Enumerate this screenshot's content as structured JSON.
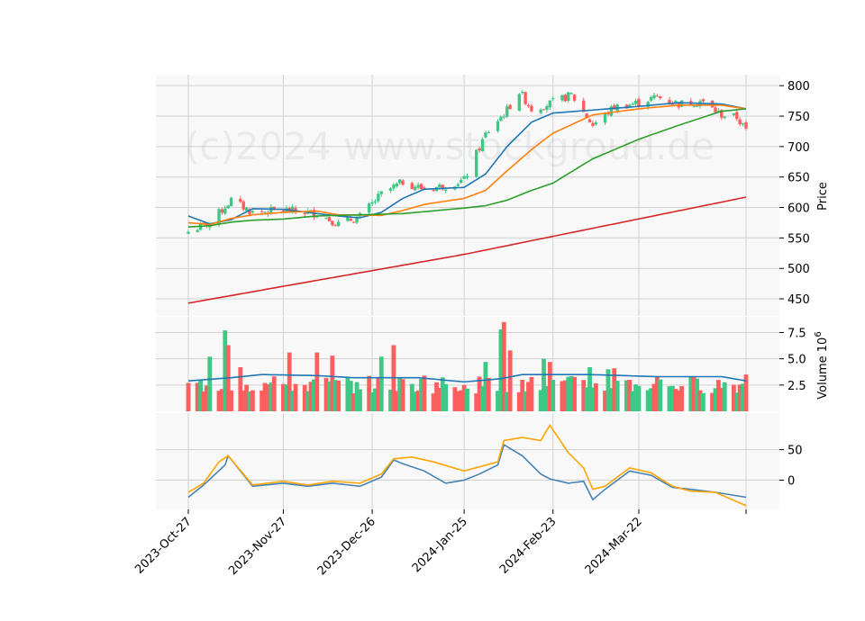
{
  "watermark": "(c)2024 www.stockgroud.de",
  "chart_data": [
    {
      "type": "candlestick",
      "panel": "price",
      "ylabel": "Price",
      "ylim": [
        422,
        818
      ],
      "yticks": [
        450,
        500,
        550,
        600,
        650,
        700,
        750,
        800
      ],
      "x_start": "2023-10-27",
      "x_end": "2024-04-26",
      "xticks": [
        {
          "date": "2023-10-27",
          "label": "2023-Oct-27"
        },
        {
          "date": "2023-11-27",
          "label": "2023-Nov-27"
        },
        {
          "date": "2023-12-26",
          "label": "2023-Dec-26"
        },
        {
          "date": "2024-01-25",
          "label": "2024-Jan-25"
        },
        {
          "date": "2024-02-23",
          "label": "2024-Feb-23"
        },
        {
          "date": "2024-03-22",
          "label": "2024-Mar-22"
        },
        {
          "date": "2024-04-26",
          "label": ""
        }
      ],
      "key_closes": [
        {
          "date": "2023-10-27",
          "close": 560
        },
        {
          "date": "2023-11-03",
          "close": 575
        },
        {
          "date": "2023-11-10",
          "close": 612
        },
        {
          "date": "2023-11-17",
          "close": 592
        },
        {
          "date": "2023-11-27",
          "close": 596
        },
        {
          "date": "2023-12-08",
          "close": 590
        },
        {
          "date": "2023-12-15",
          "close": 573
        },
        {
          "date": "2023-12-22",
          "close": 585
        },
        {
          "date": "2023-12-29",
          "close": 622
        },
        {
          "date": "2024-01-05",
          "close": 642
        },
        {
          "date": "2024-01-12",
          "close": 630
        },
        {
          "date": "2024-01-19",
          "close": 636
        },
        {
          "date": "2024-01-25",
          "close": 645
        },
        {
          "date": "2024-02-01",
          "close": 720
        },
        {
          "date": "2024-02-08",
          "close": 760
        },
        {
          "date": "2024-02-12",
          "close": 790
        },
        {
          "date": "2024-02-16",
          "close": 762
        },
        {
          "date": "2024-02-23",
          "close": 772
        },
        {
          "date": "2024-02-29",
          "close": 785
        },
        {
          "date": "2024-03-07",
          "close": 735
        },
        {
          "date": "2024-03-14",
          "close": 765
        },
        {
          "date": "2024-03-22",
          "close": 772
        },
        {
          "date": "2024-03-28",
          "close": 782
        },
        {
          "date": "2024-04-04",
          "close": 770
        },
        {
          "date": "2024-04-11",
          "close": 775
        },
        {
          "date": "2024-04-18",
          "close": 752
        },
        {
          "date": "2024-04-23",
          "close": 748
        },
        {
          "date": "2024-04-26",
          "close": 726
        }
      ],
      "moving_averages": [
        {
          "color": "#1f77b4",
          "points": [
            [
              "2023-10-27",
              586
            ],
            [
              "2023-11-03",
              573
            ],
            [
              "2023-11-10",
              580
            ],
            [
              "2023-11-17",
              598
            ],
            [
              "2023-11-27",
              597
            ],
            [
              "2023-12-08",
              590
            ],
            [
              "2023-12-15",
              586
            ],
            [
              "2023-12-22",
              583
            ],
            [
              "2023-12-29",
              592
            ],
            [
              "2024-01-05",
              615
            ],
            [
              "2024-01-12",
              630
            ],
            [
              "2024-01-25",
              633
            ],
            [
              "2024-02-01",
              655
            ],
            [
              "2024-02-08",
              700
            ],
            [
              "2024-02-16",
              740
            ],
            [
              "2024-02-23",
              755
            ],
            [
              "2024-03-07",
              760
            ],
            [
              "2024-03-22",
              766
            ],
            [
              "2024-04-04",
              772
            ],
            [
              "2024-04-18",
              770
            ],
            [
              "2024-04-26",
              762
            ]
          ]
        },
        {
          "color": "#ff7f0e",
          "points": [
            [
              "2023-10-27",
              575
            ],
            [
              "2023-11-03",
              572
            ],
            [
              "2023-11-10",
              582
            ],
            [
              "2023-11-17",
              588
            ],
            [
              "2023-11-27",
              592
            ],
            [
              "2023-12-08",
              594
            ],
            [
              "2023-12-15",
              588
            ],
            [
              "2023-12-29",
              587
            ],
            [
              "2024-01-05",
              595
            ],
            [
              "2024-01-12",
              605
            ],
            [
              "2024-01-25",
              615
            ],
            [
              "2024-02-01",
              628
            ],
            [
              "2024-02-08",
              660
            ],
            [
              "2024-02-16",
              695
            ],
            [
              "2024-02-23",
              722
            ],
            [
              "2024-03-07",
              752
            ],
            [
              "2024-03-22",
              762
            ],
            [
              "2024-04-04",
              768
            ],
            [
              "2024-04-18",
              768
            ],
            [
              "2024-04-26",
              762
            ]
          ]
        },
        {
          "color": "#2ca02c",
          "points": [
            [
              "2023-10-27",
              568
            ],
            [
              "2023-11-03",
              570
            ],
            [
              "2023-11-10",
              576
            ],
            [
              "2023-11-17",
              579
            ],
            [
              "2023-11-27",
              581
            ],
            [
              "2023-12-08",
              586
            ],
            [
              "2023-12-22",
              588
            ],
            [
              "2024-01-05",
              590
            ],
            [
              "2024-01-25",
              599
            ],
            [
              "2024-02-01",
              603
            ],
            [
              "2024-02-08",
              612
            ],
            [
              "2024-02-16",
              628
            ],
            [
              "2024-02-23",
              640
            ],
            [
              "2024-03-07",
              680
            ],
            [
              "2024-03-22",
              712
            ],
            [
              "2024-04-04",
              735
            ],
            [
              "2024-04-18",
              758
            ],
            [
              "2024-04-26",
              762
            ]
          ]
        },
        {
          "color": "#d62728",
          "points": [
            [
              "2023-10-27",
              443
            ],
            [
              "2024-01-25",
              523
            ],
            [
              "2024-04-26",
              617
            ]
          ]
        }
      ]
    },
    {
      "type": "bar",
      "panel": "volume",
      "ylabel": "Volume  10^6",
      "ylim": [
        0,
        9
      ],
      "yticks": [
        2.5,
        5.0,
        7.5
      ],
      "up_color": "#3dc985",
      "down_color": "#ff5e5e",
      "series": [
        {
          "date": "2023-10-27",
          "value": 2.7,
          "direction": "down"
        },
        {
          "date": "2023-11-03",
          "value": 5.2,
          "direction": "up"
        },
        {
          "date": "2023-11-08",
          "value": 7.7,
          "direction": "up"
        },
        {
          "date": "2023-11-09",
          "value": 6.3,
          "direction": "down"
        },
        {
          "date": "2023-11-13",
          "value": 4.2,
          "direction": "down"
        },
        {
          "date": "2023-11-27",
          "value": 2.6,
          "direction": "down"
        },
        {
          "date": "2023-11-29",
          "value": 5.6,
          "direction": "down"
        },
        {
          "date": "2023-12-08",
          "value": 5.6,
          "direction": "down"
        },
        {
          "date": "2023-12-13",
          "value": 5.3,
          "direction": "down"
        },
        {
          "date": "2023-12-22",
          "value": 2.1,
          "direction": "up"
        },
        {
          "date": "2023-12-29",
          "value": 5.2,
          "direction": "up"
        },
        {
          "date": "2024-01-02",
          "value": 6.3,
          "direction": "down"
        },
        {
          "date": "2024-01-12",
          "value": 3.4,
          "direction": "down"
        },
        {
          "date": "2024-01-25",
          "value": 2.5,
          "direction": "down"
        },
        {
          "date": "2024-02-01",
          "value": 4.7,
          "direction": "up"
        },
        {
          "date": "2024-02-06",
          "value": 7.8,
          "direction": "up"
        },
        {
          "date": "2024-02-07",
          "value": 8.5,
          "direction": "down"
        },
        {
          "date": "2024-02-09",
          "value": 5.8,
          "direction": "down"
        },
        {
          "date": "2024-02-13",
          "value": 3.0,
          "direction": "down"
        },
        {
          "date": "2024-02-20",
          "value": 5.0,
          "direction": "up"
        },
        {
          "date": "2024-02-22",
          "value": 4.7,
          "direction": "down"
        },
        {
          "date": "2024-03-06",
          "value": 4.2,
          "direction": "up"
        },
        {
          "date": "2024-03-12",
          "value": 4.0,
          "direction": "up"
        },
        {
          "date": "2024-03-14",
          "value": 4.1,
          "direction": "down"
        },
        {
          "date": "2024-03-19",
          "value": 3.0,
          "direction": "down"
        },
        {
          "date": "2024-03-28",
          "value": 3.3,
          "direction": "down"
        },
        {
          "date": "2024-04-26",
          "value": 3.5,
          "direction": "down"
        }
      ],
      "average_line": {
        "color": "#1f77b4",
        "points": [
          [
            "2023-10-27",
            2.9
          ],
          [
            "2023-11-10",
            3.2
          ],
          [
            "2023-11-20",
            3.5
          ],
          [
            "2023-12-08",
            3.4
          ],
          [
            "2023-12-20",
            3.2
          ],
          [
            "2024-01-10",
            3.2
          ],
          [
            "2024-01-25",
            2.8
          ],
          [
            "2024-02-06",
            3.1
          ],
          [
            "2024-02-13",
            3.5
          ],
          [
            "2024-03-06",
            3.5
          ],
          [
            "2024-03-28",
            3.3
          ],
          [
            "2024-04-18",
            3.3
          ],
          [
            "2024-04-26",
            2.9
          ]
        ]
      }
    },
    {
      "type": "line",
      "panel": "oscillator",
      "ylim": [
        -48,
        110
      ],
      "yticks": [
        0,
        50
      ],
      "series": [
        {
          "color": "#4682b4",
          "points": [
            [
              "2023-10-27",
              -28
            ],
            [
              "2023-11-01",
              -8
            ],
            [
              "2023-11-08",
              25
            ],
            [
              "2023-11-09",
              40
            ],
            [
              "2023-11-17",
              -10
            ],
            [
              "2023-11-27",
              -5
            ],
            [
              "2023-12-05",
              -10
            ],
            [
              "2023-12-13",
              -5
            ],
            [
              "2023-12-22",
              -10
            ],
            [
              "2023-12-29",
              5
            ],
            [
              "2024-01-02",
              33
            ],
            [
              "2024-01-05",
              27
            ],
            [
              "2024-01-12",
              15
            ],
            [
              "2024-01-19",
              -5
            ],
            [
              "2024-01-25",
              0
            ],
            [
              "2024-01-30",
              10
            ],
            [
              "2024-02-05",
              25
            ],
            [
              "2024-02-07",
              58
            ],
            [
              "2024-02-13",
              40
            ],
            [
              "2024-02-19",
              10
            ],
            [
              "2024-02-22",
              2
            ],
            [
              "2024-02-28",
              -5
            ],
            [
              "2024-03-04",
              -2
            ],
            [
              "2024-03-07",
              -32
            ],
            [
              "2024-03-11",
              -15
            ],
            [
              "2024-03-19",
              15
            ],
            [
              "2024-03-26",
              8
            ],
            [
              "2024-04-02",
              -12
            ],
            [
              "2024-04-08",
              -15
            ],
            [
              "2024-04-16",
              -20
            ],
            [
              "2024-04-26",
              -28
            ]
          ]
        },
        {
          "color": "#ffa500",
          "points": [
            [
              "2023-10-27",
              -20
            ],
            [
              "2023-11-01",
              -5
            ],
            [
              "2023-11-06",
              30
            ],
            [
              "2023-11-09",
              40
            ],
            [
              "2023-11-17",
              -8
            ],
            [
              "2023-11-27",
              -2
            ],
            [
              "2023-12-05",
              -8
            ],
            [
              "2023-12-13",
              -2
            ],
            [
              "2023-12-22",
              -5
            ],
            [
              "2023-12-29",
              10
            ],
            [
              "2024-01-02",
              35
            ],
            [
              "2024-01-08",
              38
            ],
            [
              "2024-01-15",
              30
            ],
            [
              "2024-01-25",
              15
            ],
            [
              "2024-02-05",
              30
            ],
            [
              "2024-02-07",
              65
            ],
            [
              "2024-02-13",
              70
            ],
            [
              "2024-02-19",
              65
            ],
            [
              "2024-02-22",
              90
            ],
            [
              "2024-02-28",
              45
            ],
            [
              "2024-03-04",
              20
            ],
            [
              "2024-03-07",
              -15
            ],
            [
              "2024-03-11",
              -10
            ],
            [
              "2024-03-19",
              20
            ],
            [
              "2024-03-26",
              12
            ],
            [
              "2024-04-02",
              -10
            ],
            [
              "2024-04-08",
              -18
            ],
            [
              "2024-04-16",
              -20
            ],
            [
              "2024-04-26",
              -42
            ]
          ]
        }
      ]
    }
  ]
}
